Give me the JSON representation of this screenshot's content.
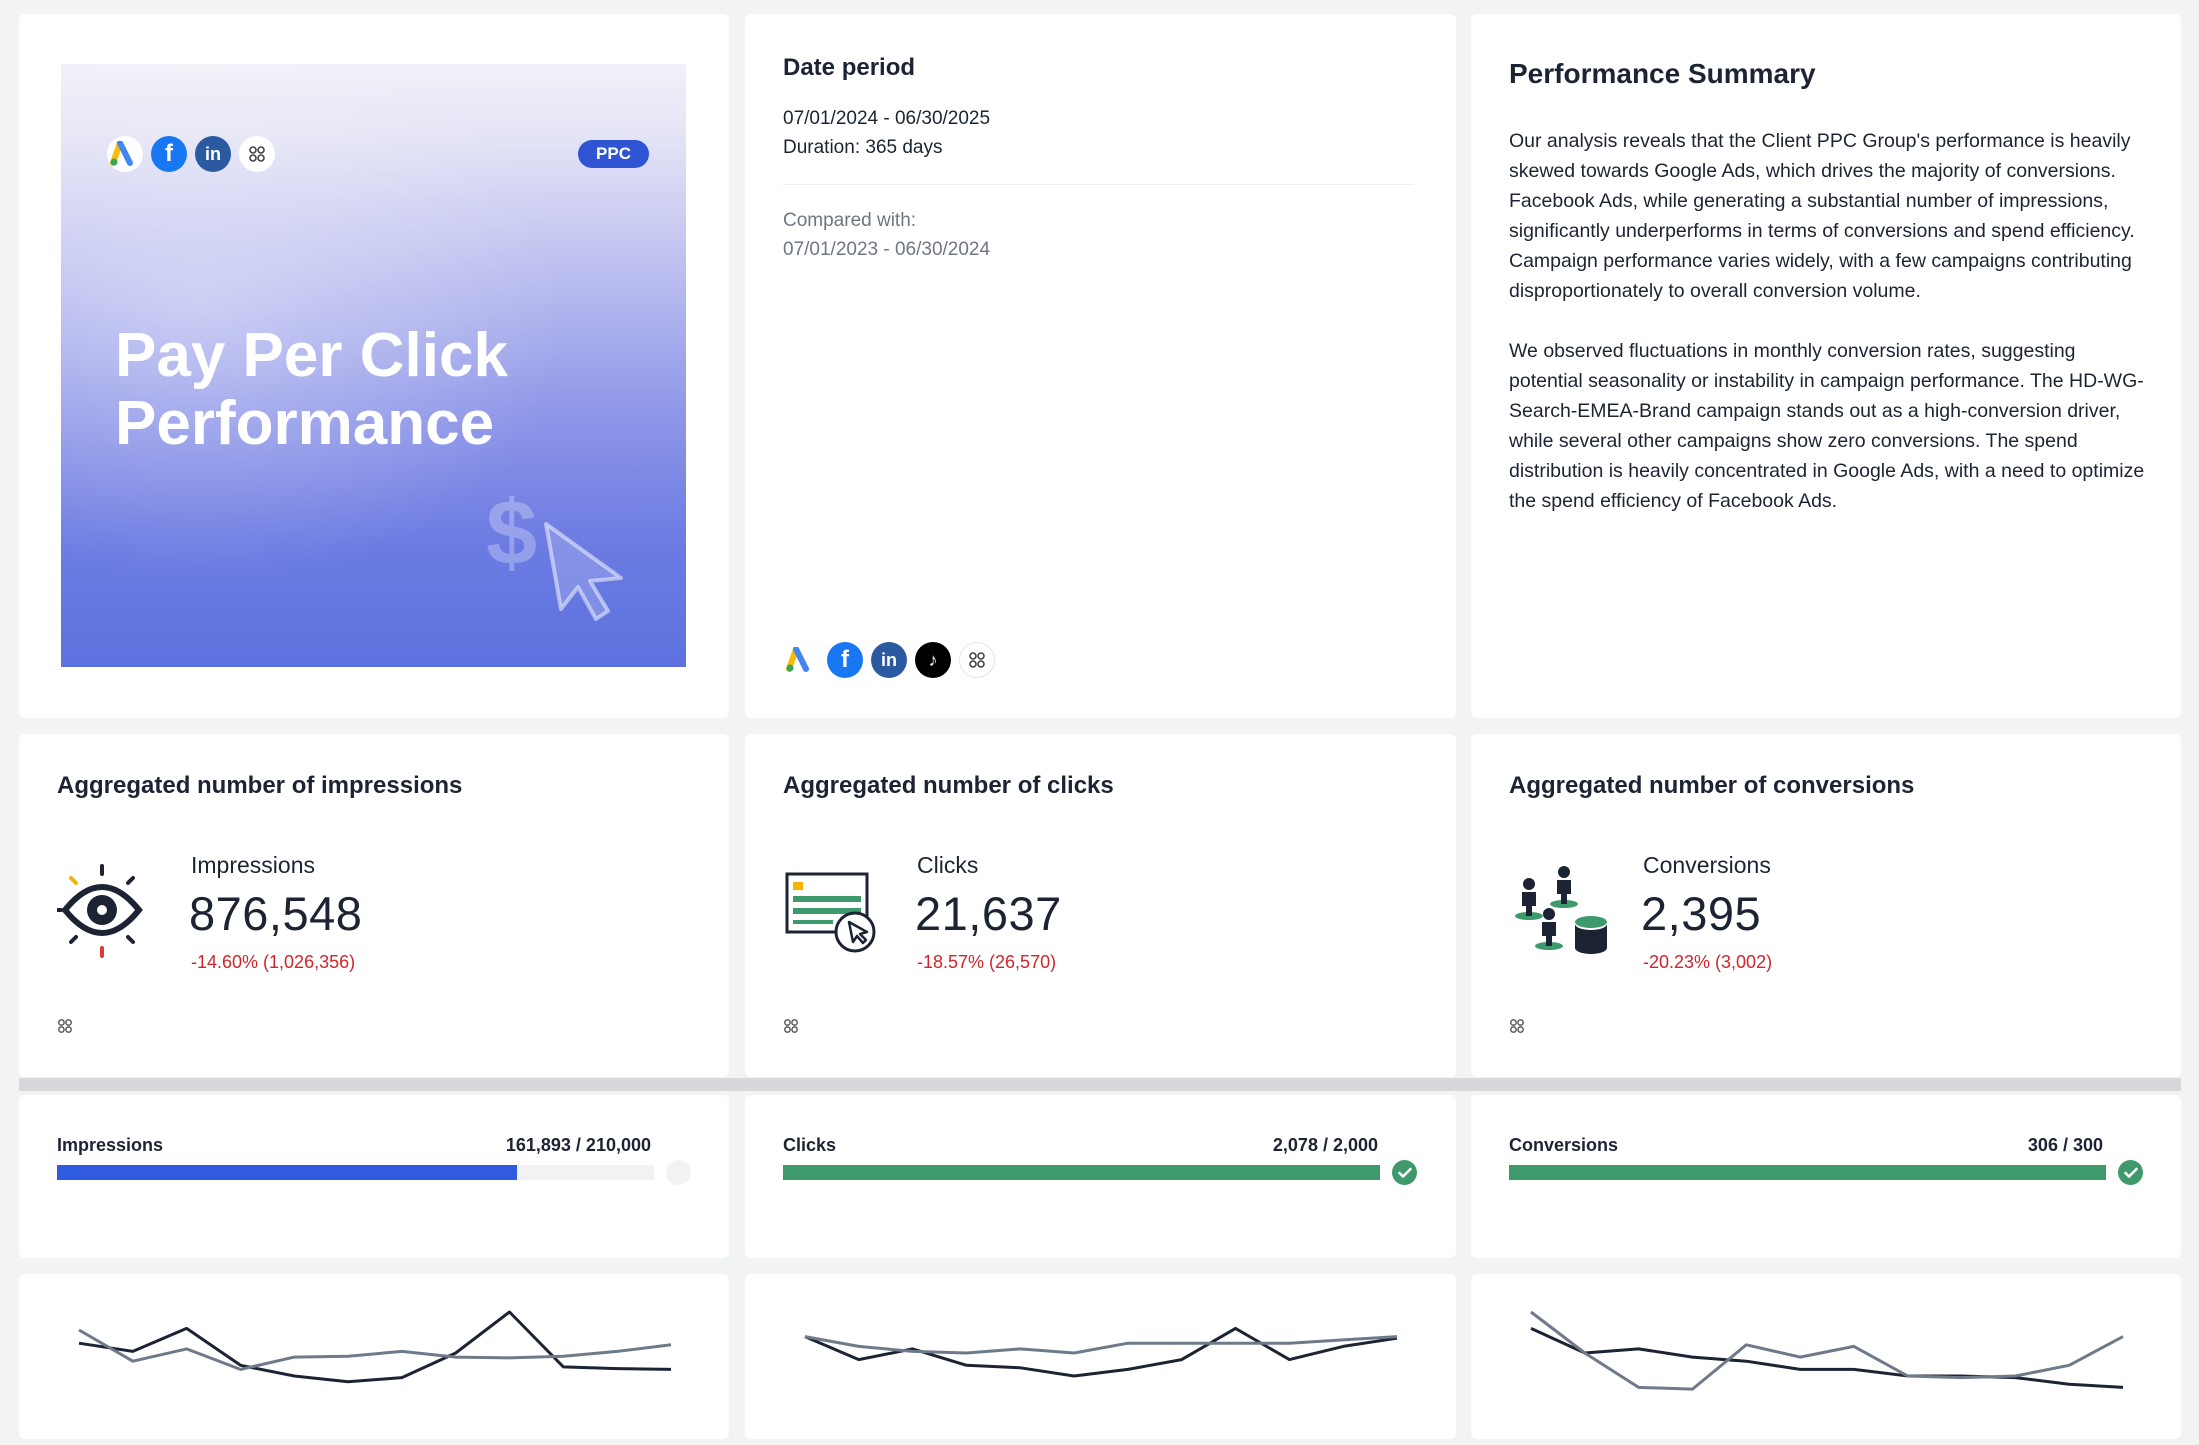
{
  "hero": {
    "badge": "PPC",
    "title": "Pay Per Click Performance",
    "icons": [
      "google-ads-icon",
      "facebook-ads-icon",
      "linkedin-ads-icon",
      "integrations-icon"
    ]
  },
  "date_period": {
    "title": "Date period",
    "range": "07/01/2024 - 06/30/2025",
    "duration": "Duration:  365 days",
    "compared_label": "Compared with:",
    "compared_range": "07/01/2023 - 06/30/2024",
    "icons": [
      "google-ads-icon",
      "facebook-ads-icon",
      "linkedin-ads-icon",
      "tiktok-ads-icon",
      "integrations-icon"
    ]
  },
  "summary": {
    "title": "Performance Summary",
    "paragraphs": [
      "Our analysis reveals that the Client PPC Group's performance is heavily skewed towards Google Ads, which drives the majority of conversions. Facebook Ads, while generating a substantial number of impressions, significantly underperforms in terms of conversions and spend efficiency. Campaign performance varies widely, with a few campaigns contributing disproportionately to overall conversion volume.",
      "We observed fluctuations in monthly conversion rates, suggesting potential seasonality or instability in campaign performance. The HD-WG-Search-EMEA-Brand campaign stands out as a high-conversion driver, while several other campaigns show zero conversions. The spend distribution is heavily concentrated in Google Ads, with a need to optimize the spend efficiency of Facebook Ads."
    ]
  },
  "kpis": [
    {
      "title": "Aggregated number of impressions",
      "label": "Impressions",
      "value": "876,548",
      "delta": "-14.60% (1,026,356)"
    },
    {
      "title": "Aggregated number of clicks",
      "label": "Clicks",
      "value": "21,637",
      "delta": "-18.57% (26,570)"
    },
    {
      "title": "Aggregated number of conversions",
      "label": "Conversions",
      "value": "2,395",
      "delta": "-20.23% (3,002)"
    }
  ],
  "goals": [
    {
      "label": "Impressions",
      "value_text": "161,893 / 210,000",
      "current": 161893,
      "target": 210000,
      "color": "#2f5be0",
      "achieved": false
    },
    {
      "label": "Clicks",
      "value_text": "2,078 / 2,000",
      "current": 2078,
      "target": 2000,
      "color": "#3f9a6b",
      "achieved": true
    },
    {
      "label": "Conversions",
      "value_text": "306 / 300",
      "current": 306,
      "target": 300,
      "color": "#3f9a6b",
      "achieved": true
    }
  ],
  "colors": {
    "current": "#1c2434",
    "previous": "#6e7a8a",
    "negative": "#d0252a",
    "check": "#3f9a6b"
  },
  "chart_data": [
    {
      "type": "line",
      "series": [
        {
          "values": [
            0.62,
            0.52,
            0.8,
            0.35,
            0.22,
            0.15,
            0.2,
            0.5,
            1.0,
            0.33,
            0.31,
            0.3
          ]
        },
        {
          "values": [
            0.78,
            0.4,
            0.55,
            0.3,
            0.45,
            0.46,
            0.52,
            0.45,
            0.44,
            0.46,
            0.52,
            0.6
          ]
        }
      ]
    },
    {
      "type": "line",
      "series": [
        {
          "values": [
            0.7,
            0.42,
            0.55,
            0.35,
            0.32,
            0.22,
            0.3,
            0.42,
            0.8,
            0.42,
            0.58,
            0.68
          ]
        },
        {
          "values": [
            0.7,
            0.58,
            0.52,
            0.5,
            0.55,
            0.5,
            0.62,
            0.62,
            0.62,
            0.62,
            0.66,
            0.7
          ]
        }
      ]
    },
    {
      "type": "line",
      "series": [
        {
          "values": [
            0.8,
            0.5,
            0.55,
            0.45,
            0.4,
            0.3,
            0.3,
            0.22,
            0.22,
            0.2,
            0.12,
            0.08
          ]
        },
        {
          "values": [
            1.0,
            0.5,
            0.08,
            0.06,
            0.6,
            0.45,
            0.58,
            0.22,
            0.2,
            0.22,
            0.35,
            0.7
          ]
        }
      ]
    }
  ]
}
